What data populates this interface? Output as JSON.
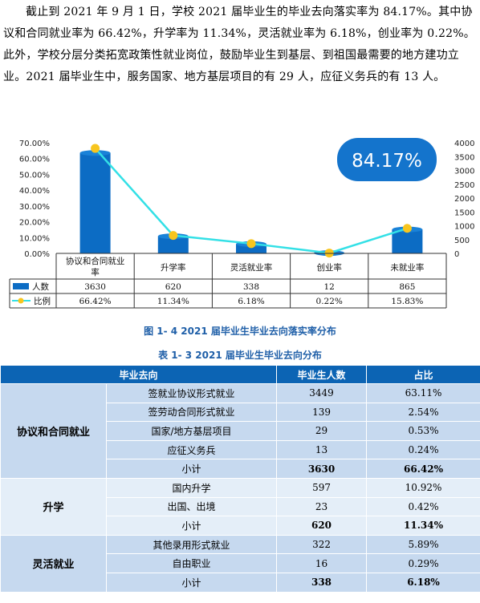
{
  "paragraph": "截止到 2021 年 9 月 1 日，学校 2021 届毕业生的毕业去向落实率为 84.17%。其中协议和合同就业率为 66.42%，升学率为 11.34%，灵活就业率为 6.18%，创业率为 0.22%。此外，学校分层分类拓宽政策性就业岗位，鼓励毕业生到基层、到祖国最需要的地方建功立业。2021 届毕业生中，服务国家、地方基层项目的有 29 人，应征义务兵的有 13 人。",
  "figure_caption": "图 1- 4    2021 届毕业生毕业去向落实率分布",
  "table_caption": "表 1- 3    2021 届毕业生毕业去向分布",
  "colors": {
    "bar": "#0c6cc4",
    "line": "#33e0e6",
    "marker": "#f7c51e",
    "badge": "#1474cc",
    "header": "#0c64b4"
  },
  "chart_data": {
    "type": "bar",
    "badge": "84.17%",
    "categories": [
      "协议和合同就业率",
      "升学率",
      "灵活就业率",
      "创业率",
      "未就业率"
    ],
    "series": [
      {
        "name": "人数",
        "kind": "bar",
        "axis": "right",
        "values": [
          3630,
          620,
          338,
          12,
          865
        ],
        "labels": [
          "3630",
          "620",
          "338",
          "12",
          "865"
        ]
      },
      {
        "name": "比例",
        "kind": "line",
        "axis": "left",
        "values": [
          66.42,
          11.34,
          6.18,
          0.22,
          15.83
        ],
        "labels": [
          "66.42%",
          "11.34%",
          "6.18%",
          "0.22%",
          "15.83%"
        ]
      }
    ],
    "y_left": {
      "ylim": [
        0,
        70
      ],
      "ticks": [
        "0.00%",
        "10.00%",
        "20.00%",
        "30.00%",
        "40.00%",
        "50.00%",
        "60.00%",
        "70.00%"
      ]
    },
    "y_right": {
      "ylim": [
        0,
        4000
      ],
      "ticks": [
        "0",
        "500",
        "1000",
        "1500",
        "2000",
        "2500",
        "3000",
        "3500",
        "4000"
      ]
    },
    "grid": false,
    "legend": "data-table"
  },
  "table": {
    "headers": [
      "毕业去向",
      "毕业生人数",
      "占比"
    ],
    "groups": [
      {
        "name": "协议和合同就业",
        "rows": [
          {
            "label": "签就业协议形式就业",
            "count": "3449",
            "pct": "63.11%"
          },
          {
            "label": "签劳动合同形式就业",
            "count": "139",
            "pct": "2.54%"
          },
          {
            "label": "国家/地方基层项目",
            "count": "29",
            "pct": "0.53%"
          },
          {
            "label": "应征义务兵",
            "count": "13",
            "pct": "0.24%"
          }
        ],
        "subtotal": {
          "label": "小计",
          "count": "3630",
          "pct": "66.42%"
        }
      },
      {
        "name": "升学",
        "rows": [
          {
            "label": "国内升学",
            "count": "597",
            "pct": "10.92%"
          },
          {
            "label": "出国、出境",
            "count": "23",
            "pct": "0.42%"
          }
        ],
        "subtotal": {
          "label": "小计",
          "count": "620",
          "pct": "11.34%"
        }
      },
      {
        "name": "灵活就业",
        "rows": [
          {
            "label": "其他录用形式就业",
            "count": "322",
            "pct": "5.89%"
          },
          {
            "label": "自由职业",
            "count": "16",
            "pct": "0.29%"
          }
        ],
        "subtotal": {
          "label": "小计",
          "count": "338",
          "pct": "6.18%"
        }
      }
    ]
  }
}
